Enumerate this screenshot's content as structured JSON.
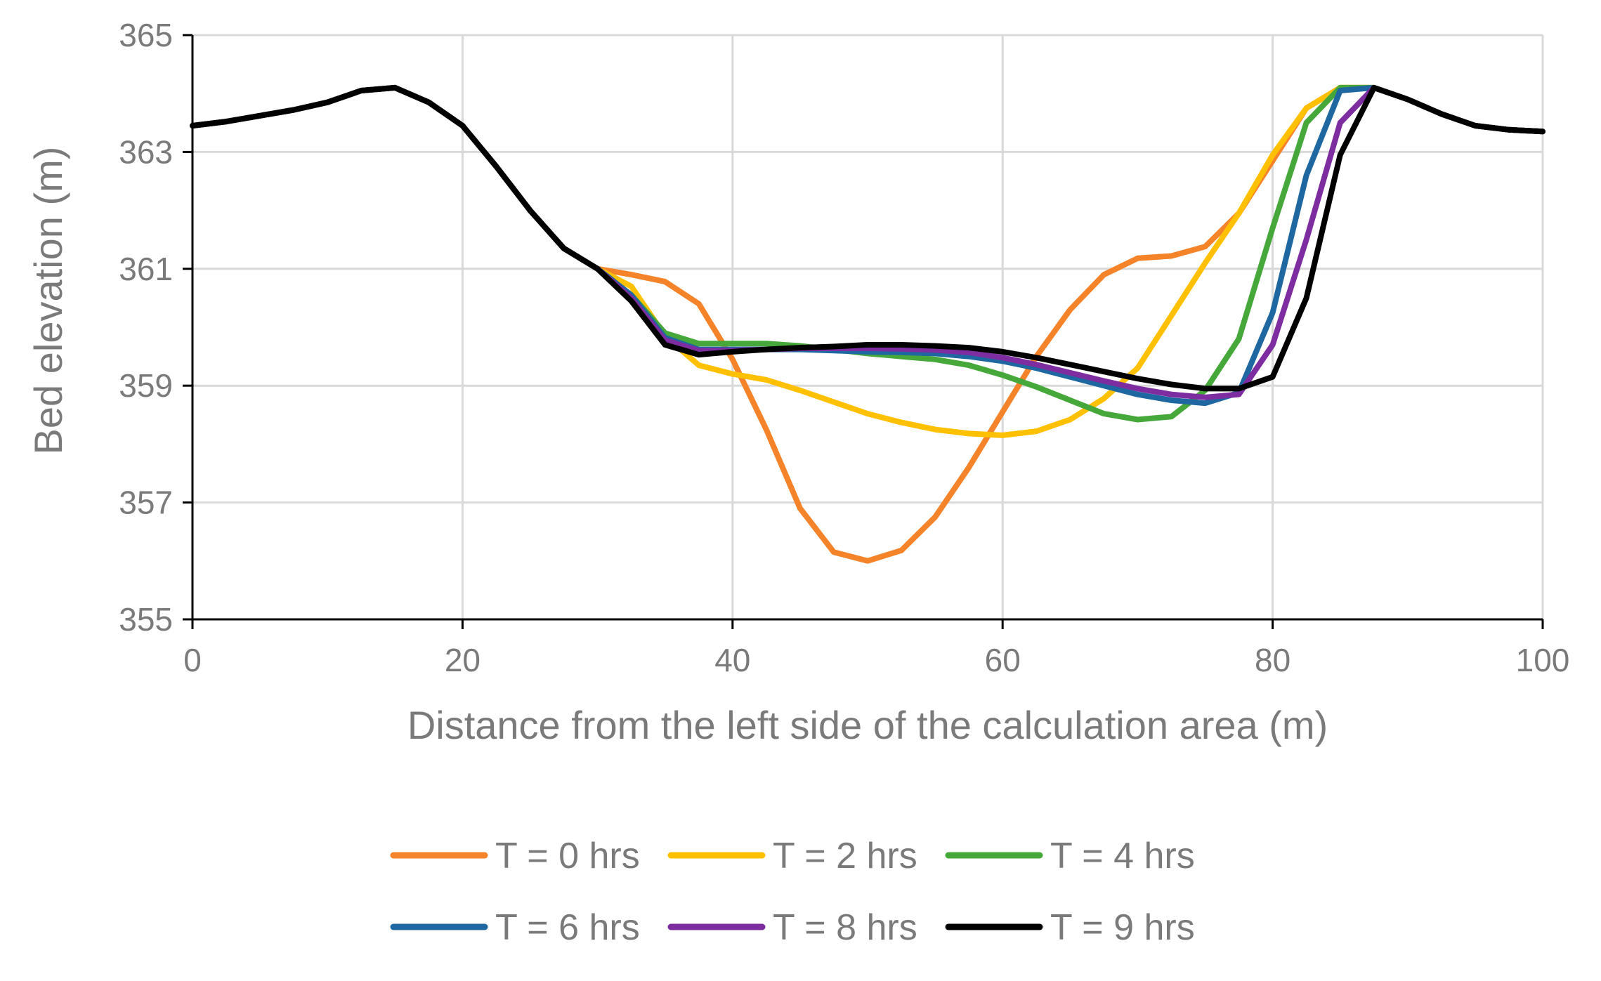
{
  "chart_data": {
    "type": "line",
    "title": "",
    "xlabel": "Distance from the left side of the calculation area (m)",
    "ylabel": "Bed elevation (m)",
    "xlim": [
      0,
      100
    ],
    "ylim": [
      355,
      365
    ],
    "xticks": [
      0,
      20,
      40,
      60,
      80,
      100
    ],
    "yticks": [
      355,
      357,
      359,
      361,
      363,
      365
    ],
    "grid": true,
    "legend_position": "bottom",
    "series": [
      {
        "name": "T = 0 hrs",
        "color": "#F5832A",
        "x": [
          0,
          2.5,
          5,
          7.5,
          10,
          12.5,
          15,
          17.5,
          20,
          22.5,
          25,
          27.5,
          30,
          32.5,
          35,
          37.5,
          40,
          42.5,
          45,
          47.5,
          50,
          52.5,
          55,
          57.5,
          60,
          62.5,
          65,
          67.5,
          70,
          72.5,
          75,
          77.5,
          80,
          82.5,
          85,
          87.5,
          90,
          92.5,
          95,
          97.5,
          100
        ],
        "y": [
          363.45,
          363.52,
          363.62,
          363.72,
          363.85,
          364.05,
          364.1,
          363.85,
          363.45,
          362.75,
          362.0,
          361.35,
          361.0,
          360.9,
          360.78,
          360.4,
          359.45,
          358.25,
          356.9,
          356.15,
          356.0,
          356.18,
          356.75,
          357.6,
          358.55,
          359.5,
          360.3,
          360.9,
          361.18,
          361.22,
          361.38,
          361.95,
          362.85,
          363.75,
          364.1,
          364.1,
          363.9,
          363.65,
          363.45,
          363.38,
          363.35
        ]
      },
      {
        "name": "T = 2 hrs",
        "color": "#FFC000",
        "x": [
          0,
          2.5,
          5,
          7.5,
          10,
          12.5,
          15,
          17.5,
          20,
          22.5,
          25,
          27.5,
          30,
          32.5,
          35,
          37.5,
          40,
          42.5,
          45,
          47.5,
          50,
          52.5,
          55,
          57.5,
          60,
          62.5,
          65,
          67.5,
          70,
          72.5,
          75,
          77.5,
          80,
          82.5,
          85,
          87.5,
          90,
          92.5,
          95,
          97.5,
          100
        ],
        "y": [
          363.45,
          363.52,
          363.62,
          363.72,
          363.85,
          364.05,
          364.1,
          363.85,
          363.45,
          362.75,
          362.0,
          361.35,
          361.0,
          360.7,
          359.85,
          359.35,
          359.2,
          359.1,
          358.92,
          358.72,
          358.52,
          358.37,
          358.25,
          358.18,
          358.15,
          358.22,
          358.42,
          358.78,
          359.3,
          360.2,
          361.1,
          361.95,
          362.95,
          363.75,
          364.1,
          364.1,
          363.9,
          363.65,
          363.45,
          363.38,
          363.35
        ]
      },
      {
        "name": "T = 4 hrs",
        "color": "#46A83A",
        "x": [
          0,
          2.5,
          5,
          7.5,
          10,
          12.5,
          15,
          17.5,
          20,
          22.5,
          25,
          27.5,
          30,
          32.5,
          35,
          37.5,
          40,
          42.5,
          45,
          47.5,
          50,
          52.5,
          55,
          57.5,
          60,
          62.5,
          65,
          67.5,
          70,
          72.5,
          75,
          77.5,
          80,
          82.5,
          85,
          87.5,
          90,
          92.5,
          95,
          97.5,
          100
        ],
        "y": [
          363.45,
          363.52,
          363.62,
          363.72,
          363.85,
          364.05,
          364.1,
          363.85,
          363.45,
          362.75,
          362.0,
          361.35,
          361.0,
          360.55,
          359.9,
          359.72,
          359.72,
          359.72,
          359.68,
          359.62,
          359.55,
          359.5,
          359.45,
          359.35,
          359.18,
          358.98,
          358.75,
          358.52,
          358.42,
          358.47,
          358.92,
          359.8,
          361.7,
          363.5,
          364.1,
          364.1,
          363.9,
          363.65,
          363.45,
          363.38,
          363.35
        ]
      },
      {
        "name": "T = 6 hrs",
        "color": "#1F67A0",
        "x": [
          0,
          2.5,
          5,
          7.5,
          10,
          12.5,
          15,
          17.5,
          20,
          22.5,
          25,
          27.5,
          30,
          32.5,
          35,
          37.5,
          40,
          42.5,
          45,
          47.5,
          50,
          52.5,
          55,
          57.5,
          60,
          62.5,
          65,
          67.5,
          70,
          72.5,
          75,
          77.5,
          80,
          82.5,
          85,
          87.5,
          90,
          92.5,
          95,
          97.5,
          100
        ],
        "y": [
          363.45,
          363.52,
          363.62,
          363.72,
          363.85,
          364.05,
          364.1,
          363.85,
          363.45,
          362.75,
          362.0,
          361.35,
          361.0,
          360.55,
          359.82,
          359.62,
          359.62,
          359.62,
          359.62,
          359.6,
          359.58,
          359.57,
          359.55,
          359.5,
          359.42,
          359.3,
          359.15,
          359.0,
          358.85,
          358.75,
          358.7,
          358.88,
          360.25,
          362.6,
          364.05,
          364.1,
          363.9,
          363.65,
          363.45,
          363.38,
          363.35
        ]
      },
      {
        "name": "T = 8 hrs",
        "color": "#7D2DA0",
        "x": [
          0,
          2.5,
          5,
          7.5,
          10,
          12.5,
          15,
          17.5,
          20,
          22.5,
          25,
          27.5,
          30,
          32.5,
          35,
          37.5,
          40,
          42.5,
          45,
          47.5,
          50,
          52.5,
          55,
          57.5,
          60,
          62.5,
          65,
          67.5,
          70,
          72.5,
          75,
          77.5,
          80,
          82.5,
          85,
          87.5,
          90,
          92.5,
          95,
          97.5,
          100
        ],
        "y": [
          363.45,
          363.52,
          363.62,
          363.72,
          363.85,
          364.05,
          364.1,
          363.85,
          363.45,
          362.75,
          362.0,
          361.35,
          361.0,
          360.5,
          359.78,
          359.6,
          359.6,
          359.62,
          359.64,
          359.64,
          359.64,
          359.63,
          359.61,
          359.57,
          359.48,
          359.36,
          359.22,
          359.08,
          358.95,
          358.85,
          358.8,
          358.85,
          359.7,
          361.5,
          363.5,
          364.1,
          363.9,
          363.65,
          363.45,
          363.38,
          363.35
        ]
      },
      {
        "name": "T = 9 hrs",
        "color": "#000000",
        "x": [
          0,
          2.5,
          5,
          7.5,
          10,
          12.5,
          15,
          17.5,
          20,
          22.5,
          25,
          27.5,
          30,
          32.5,
          35,
          37.5,
          40,
          42.5,
          45,
          47.5,
          50,
          52.5,
          55,
          57.5,
          60,
          62.5,
          65,
          67.5,
          70,
          72.5,
          75,
          77.5,
          80,
          82.5,
          85,
          87.5,
          90,
          92.5,
          95,
          97.5,
          100
        ],
        "y": [
          363.45,
          363.52,
          363.62,
          363.72,
          363.85,
          364.05,
          364.1,
          363.85,
          363.45,
          362.75,
          362.0,
          361.35,
          361.0,
          360.45,
          359.7,
          359.53,
          359.58,
          359.62,
          359.65,
          359.67,
          359.7,
          359.7,
          359.68,
          359.65,
          359.58,
          359.48,
          359.36,
          359.24,
          359.12,
          359.02,
          358.95,
          358.95,
          359.15,
          360.5,
          362.95,
          364.1,
          363.9,
          363.65,
          363.45,
          363.38,
          363.35
        ]
      }
    ]
  }
}
